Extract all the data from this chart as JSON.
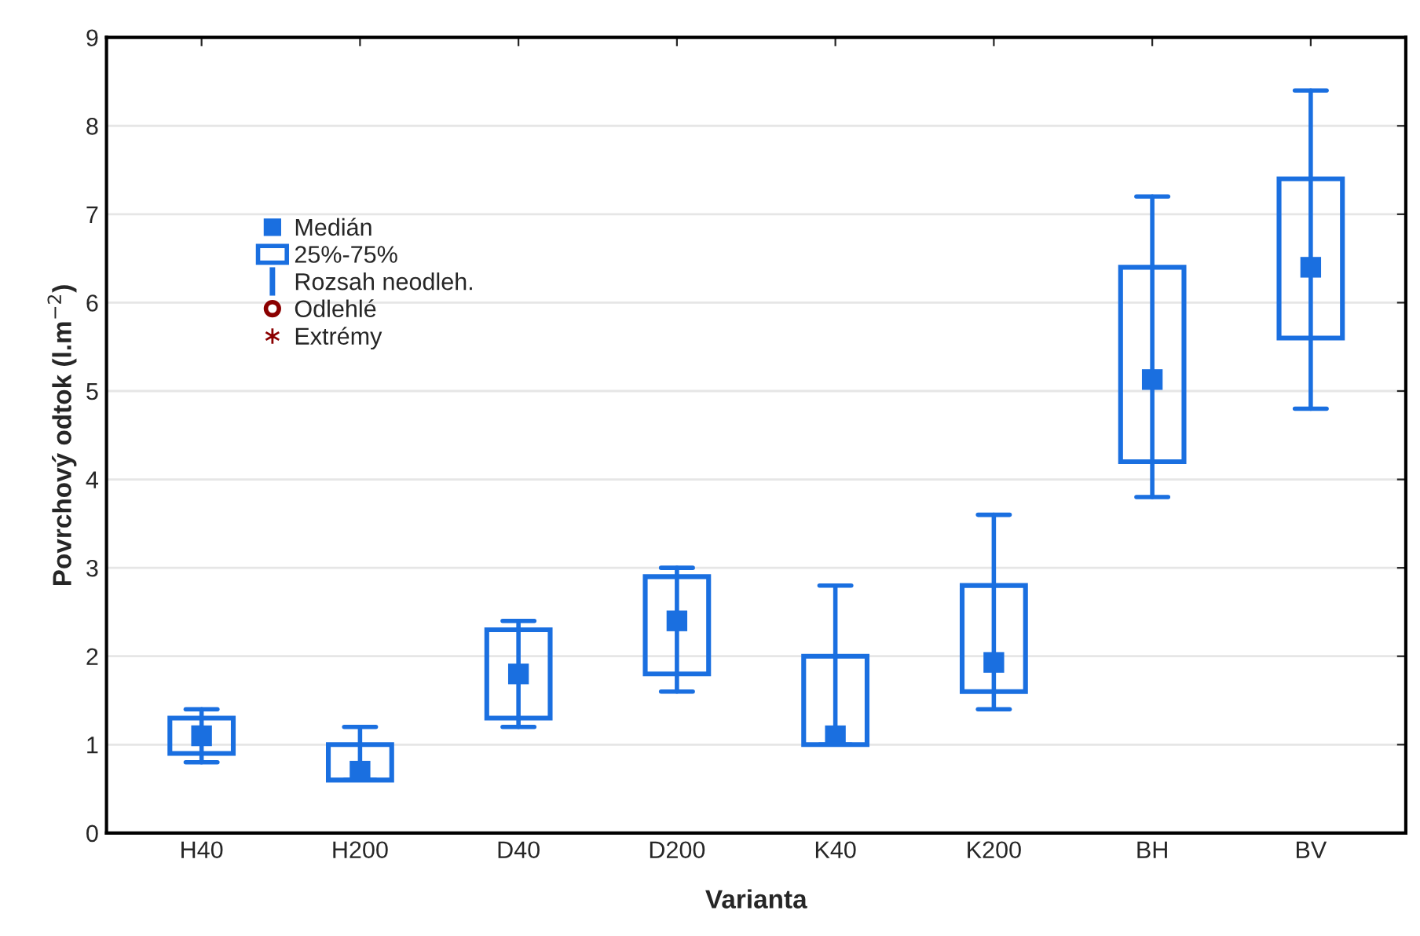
{
  "chart_data": {
    "type": "box",
    "xlabel": "Varianta",
    "ylabel": "Povrchový odtok (l.m$^{−2}$)",
    "categories": [
      "H40",
      "H200",
      "D40",
      "D200",
      "K40",
      "K200",
      "BH",
      "BV"
    ],
    "series": [
      {
        "name": "25%-75%",
        "color": "#1a6fe0",
        "boxes": [
          {
            "low": 0.8,
            "q1": 0.9,
            "median": 1.1,
            "q3": 1.3,
            "high": 1.4
          },
          {
            "low": 0.6,
            "q1": 0.6,
            "median": 0.7,
            "q3": 1.0,
            "high": 1.2
          },
          {
            "low": 1.2,
            "q1": 1.3,
            "median": 1.8,
            "q3": 2.3,
            "high": 2.4
          },
          {
            "low": 1.6,
            "q1": 1.8,
            "median": 2.4,
            "q3": 2.9,
            "high": 3.0
          },
          {
            "low": 1.0,
            "q1": 1.0,
            "median": 1.1,
            "q3": 2.0,
            "high": 2.8
          },
          {
            "low": 1.4,
            "q1": 1.6,
            "median": 1.93,
            "q3": 2.8,
            "high": 3.6
          },
          {
            "low": 3.8,
            "q1": 4.2,
            "median": 5.13,
            "q3": 6.4,
            "high": 7.2
          },
          {
            "low": 4.8,
            "q1": 5.6,
            "median": 6.4,
            "q3": 7.4,
            "high": 8.4
          }
        ]
      }
    ],
    "annotations": [
      "Medián",
      "Rozsah neodleh.",
      "Odlehlé",
      "Extrémy"
    ],
    "ylim": [
      0,
      9
    ],
    "yticks": [
      0,
      1,
      2,
      3,
      4,
      5,
      6,
      7,
      8,
      9
    ],
    "grid": "y",
    "legend": "top left"
  }
}
